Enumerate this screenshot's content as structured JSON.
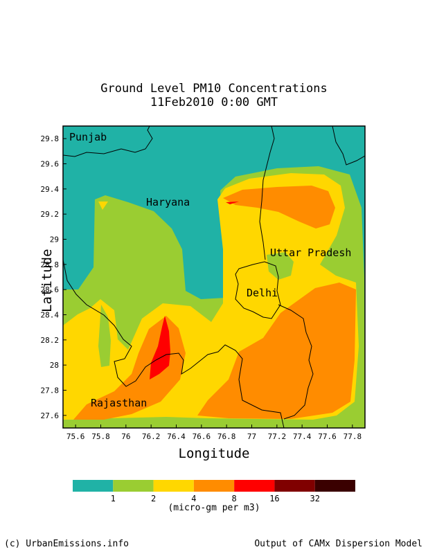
{
  "title_line1": "Ground Level PM10 Concentrations",
  "title_line2": "11Feb2010 0:00 GMT",
  "axes": {
    "xlabel": "Longitude",
    "ylabel": "Latitude",
    "x_ticks": [
      "75.6",
      "75.8",
      "76",
      "76.2",
      "76.4",
      "76.6",
      "76.8",
      "77",
      "77.2",
      "77.4",
      "77.6",
      "77.8"
    ],
    "y_ticks": [
      "29.8",
      "29.6",
      "29.4",
      "29.2",
      "29",
      "28.8",
      "28.6",
      "28.4",
      "28.2",
      "28",
      "27.8",
      "27.6"
    ],
    "xlim": [
      75.5,
      77.9
    ],
    "ylim": [
      27.5,
      29.9
    ]
  },
  "regions": {
    "punjab": "Punjab",
    "haryana": "Haryana",
    "uttar_pradesh": "Uttar Pradesh",
    "delhi": "Delhi",
    "rajasthan": "Rajasthan"
  },
  "legend": {
    "labels": [
      "1",
      "2",
      "4",
      "8",
      "16",
      "32"
    ],
    "colors": [
      "#20b2a6",
      "#9acd32",
      "#ffd700",
      "#ff8c00",
      "#ff0000",
      "#800000",
      "#3a0000"
    ],
    "unit": "(micro-gm per m3)"
  },
  "footer": {
    "left": "(c) UrbanEmissions.info",
    "right": "Output of CAMx Dispersion Model"
  }
}
